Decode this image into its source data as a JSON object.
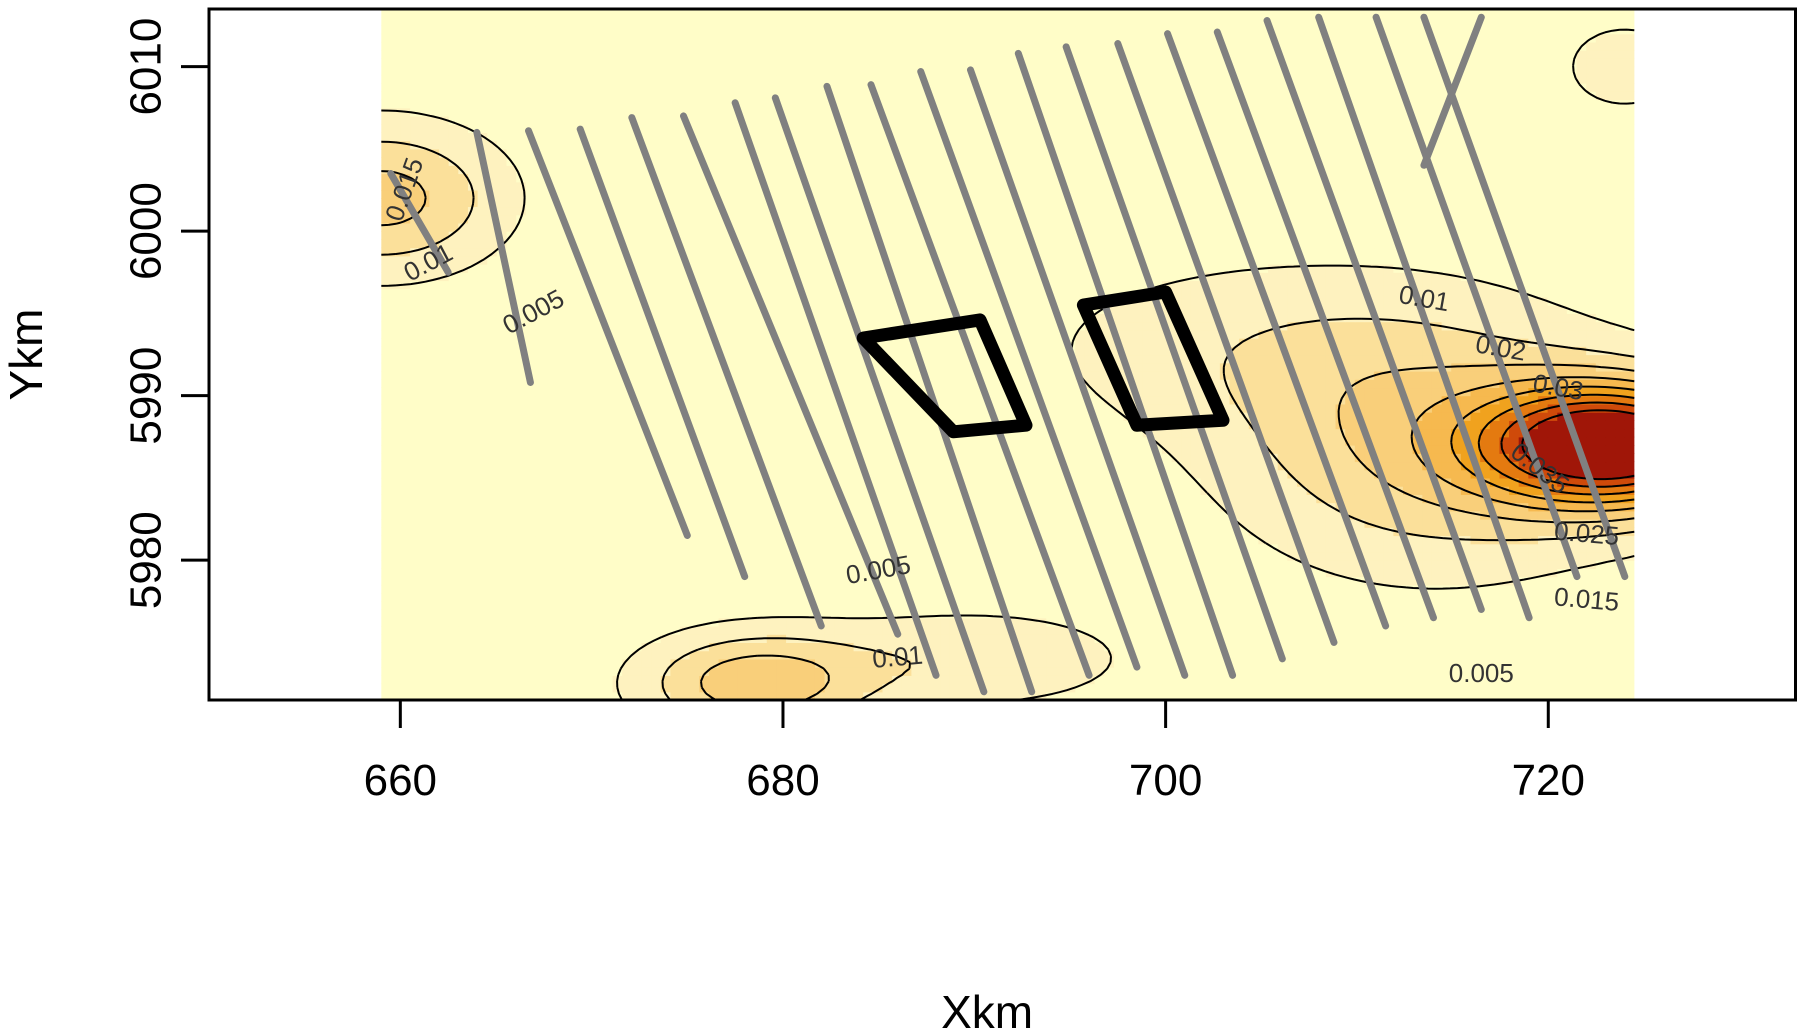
{
  "chart_data": {
    "type": "heatmap",
    "title": "",
    "xlabel": "Xkm",
    "ylabel": "Ykm",
    "xlim": [
      650,
      733
    ],
    "ylim": [
      5971.5,
      6013.5
    ],
    "x_ticks": [
      "660",
      "680",
      "700",
      "720"
    ],
    "y_ticks": [
      "5980",
      "5990",
      "6000",
      "6010"
    ],
    "image_extent": {
      "x": [
        659,
        724.5
      ],
      "y": [
        5971.5,
        6013.5
      ]
    },
    "colors": {
      "low": "#fffdc8",
      "band1": "#fef2bf",
      "band2": "#fbe09a",
      "band3": "#f9cf7a",
      "band4": "#f6b94f",
      "band5": "#f0a21e",
      "band6": "#e47a10",
      "band7": "#cf4a0a",
      "band8": "#a01608",
      "peak": "#730025",
      "contour": "#000000",
      "transect": "#808080",
      "block": "#000000"
    },
    "density_sources": [
      {
        "x": 723.5,
        "y": 5987,
        "amplitude": 0.045,
        "sx": 4.8,
        "sy": 2.6
      },
      {
        "x": 714,
        "y": 5987,
        "amplitude": 0.014,
        "sx": 7.5,
        "sy": 5.5
      },
      {
        "x": 678.5,
        "y": 5972.5,
        "amplitude": 0.017,
        "sx": 4.2,
        "sy": 2.2
      },
      {
        "x": 690,
        "y": 5974,
        "amplitude": 0.008,
        "sx": 6,
        "sy": 2.2
      },
      {
        "x": 659,
        "y": 6002,
        "amplitude": 0.016,
        "sx": 4.5,
        "sy": 3.2
      },
      {
        "x": 704,
        "y": 5993,
        "amplitude": 0.006,
        "sx": 9,
        "sy": 4
      },
      {
        "x": 700,
        "y": 6013,
        "amplitude": 0.004,
        "sx": 5,
        "sy": 1.5
      },
      {
        "x": 724,
        "y": 6010,
        "amplitude": 0.006,
        "sx": 3,
        "sy": 2.5
      }
    ],
    "contour_levels": [
      0.005,
      0.01,
      0.015,
      0.02,
      0.025,
      0.03,
      0.035,
      0.04
    ],
    "contour_labels": [
      {
        "text": "0.015",
        "x": 660.3,
        "y": 6002.5,
        "angle": -70
      },
      {
        "text": "0.01",
        "x": 661.5,
        "y": 5998.0,
        "angle": -28
      },
      {
        "text": "0.005",
        "x": 667,
        "y": 5995.0,
        "angle": -28
      },
      {
        "text": "0.005",
        "x": 685,
        "y": 5979.3,
        "angle": -10
      },
      {
        "text": "0.01",
        "x": 686,
        "y": 5974.0,
        "angle": -5
      },
      {
        "text": "0.01",
        "x": 713.5,
        "y": 5995.8,
        "angle": 10
      },
      {
        "text": "0.02",
        "x": 717.5,
        "y": 5992.8,
        "angle": 10
      },
      {
        "text": "0.03",
        "x": 720.5,
        "y": 5990.4,
        "angle": 10
      },
      {
        "text": "0.035",
        "x": 719.5,
        "y": 5985.5,
        "angle": 38
      },
      {
        "text": "0.025",
        "x": 722,
        "y": 5981.5,
        "angle": 5
      },
      {
        "text": "0.015",
        "x": 722,
        "y": 5977.5,
        "angle": 5
      },
      {
        "text": "0.005",
        "x": 716.5,
        "y": 5973.0,
        "angle": 0
      }
    ],
    "transects": [
      {
        "x1": 659.5,
        "y1": 6003.5,
        "x2": 662.5,
        "y2": 5997.5
      },
      {
        "x1": 664,
        "y1": 6006,
        "x2": 666.8,
        "y2": 5990.8
      },
      {
        "x1": 666.7,
        "y1": 6006.1,
        "x2": 675,
        "y2": 5981.5
      },
      {
        "x1": 669.4,
        "y1": 6006.2,
        "x2": 678,
        "y2": 5979.0
      },
      {
        "x1": 672.1,
        "y1": 6006.9,
        "x2": 682,
        "y2": 5976.0
      },
      {
        "x1": 674.8,
        "y1": 6007.0,
        "x2": 686,
        "y2": 5975.5
      },
      {
        "x1": 677.5,
        "y1": 6007.8,
        "x2": 688,
        "y2": 5973.0
      },
      {
        "x1": 679.6,
        "y1": 6008.1,
        "x2": 690.5,
        "y2": 5972.0
      },
      {
        "x1": 682.3,
        "y1": 6008.8,
        "x2": 693,
        "y2": 5972.0
      },
      {
        "x1": 684.6,
        "y1": 6008.9,
        "x2": 696,
        "y2": 5973.0
      },
      {
        "x1": 687.2,
        "y1": 6009.7,
        "x2": 698.5,
        "y2": 5973.5
      },
      {
        "x1": 689.8,
        "y1": 6009.8,
        "x2": 701,
        "y2": 5973.0
      },
      {
        "x1": 692.3,
        "y1": 6010.8,
        "x2": 703.5,
        "y2": 5973.0
      },
      {
        "x1": 694.8,
        "y1": 6011.2,
        "x2": 706.1,
        "y2": 5974.0
      },
      {
        "x1": 697.5,
        "y1": 6011.4,
        "x2": 708.8,
        "y2": 5975.0
      },
      {
        "x1": 700.1,
        "y1": 6012.0,
        "x2": 711.5,
        "y2": 5976.0
      },
      {
        "x1": 702.7,
        "y1": 6012.1,
        "x2": 714.0,
        "y2": 5976.5
      },
      {
        "x1": 705.3,
        "y1": 6012.8,
        "x2": 716.5,
        "y2": 5977.0
      },
      {
        "x1": 708.0,
        "y1": 6013.0,
        "x2": 719.0,
        "y2": 5976.5
      },
      {
        "x1": 711.0,
        "y1": 6013.0,
        "x2": 721.5,
        "y2": 5979.0
      },
      {
        "x1": 713.5,
        "y1": 6013.0,
        "x2": 724.0,
        "y2": 5979.0
      },
      {
        "x1": 716.5,
        "y1": 6013.0,
        "x2": 713.5,
        "y2": 6004.0
      }
    ],
    "blocks": [
      {
        "corners": [
          [
            684.2,
            5993.5
          ],
          [
            690.3,
            5994.6
          ],
          [
            692.7,
            5988.2
          ],
          [
            688.9,
            5987.8
          ]
        ]
      },
      {
        "corners": [
          [
            695.7,
            5995.5
          ],
          [
            700.0,
            5996.3
          ],
          [
            703.0,
            5988.5
          ],
          [
            698.5,
            5988.2
          ]
        ]
      }
    ]
  }
}
